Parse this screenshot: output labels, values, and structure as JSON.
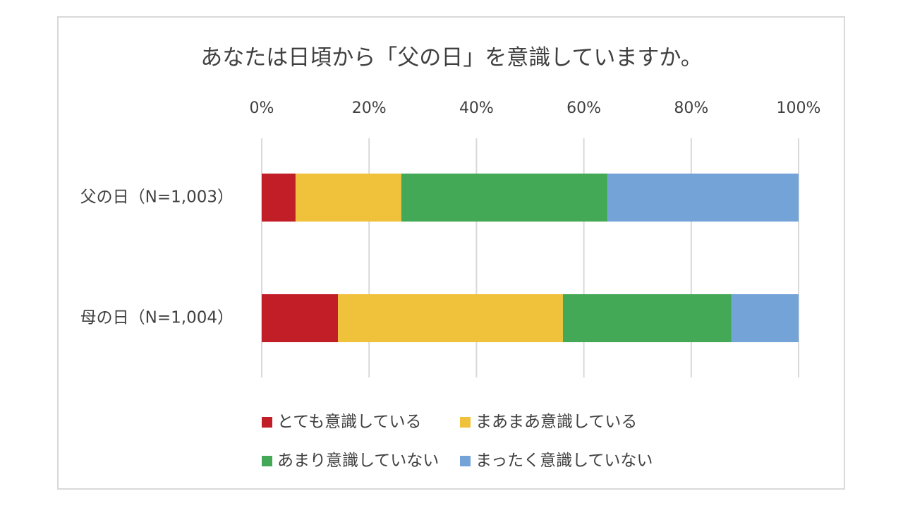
{
  "chart_data": {
    "type": "bar",
    "orientation": "horizontal",
    "stacked": true,
    "percent_stacked": true,
    "title": "あなたは日頃から「父の日」を意識していますか。",
    "categories": [
      "父の日（N=1,003）",
      "母の日（N=1,004）"
    ],
    "series": [
      {
        "name": "とても意識している",
        "color": "#c11e27",
        "values": [
          6.3,
          14.2
        ]
      },
      {
        "name": "まあまあ意識している",
        "color": "#f0c13a",
        "values": [
          19.7,
          41.9
        ]
      },
      {
        "name": "あまり意識していない",
        "color": "#43a956",
        "values": [
          38.4,
          31.4
        ]
      },
      {
        "name": "まったく意識していない",
        "color": "#74a3d7",
        "values": [
          35.6,
          12.5
        ]
      }
    ],
    "x_ticks": [
      "0%",
      "20%",
      "40%",
      "60%",
      "80%",
      "100%"
    ],
    "xlim": [
      0,
      100
    ],
    "grid": true,
    "axis_position": "top",
    "legend_position": "bottom"
  }
}
